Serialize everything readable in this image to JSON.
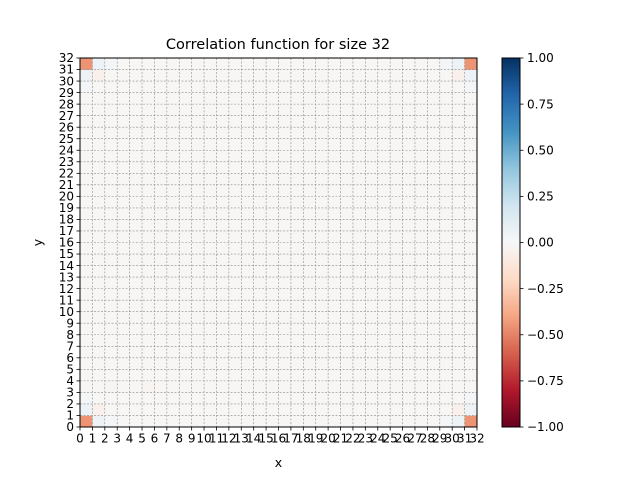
{
  "chart_data": {
    "type": "heatmap",
    "title": "Correlation function for size 32",
    "xlabel": "x",
    "ylabel": "y",
    "xlim": [
      0,
      32
    ],
    "ylim": [
      0,
      32
    ],
    "grid": true,
    "x_ticks": [
      "0",
      "1",
      "2",
      "3",
      "4",
      "5",
      "6",
      "7",
      "8",
      "9",
      "10",
      "11",
      "12",
      "13",
      "14",
      "15",
      "16",
      "17",
      "18",
      "19",
      "20",
      "21",
      "22",
      "23",
      "24",
      "25",
      "26",
      "27",
      "28",
      "29",
      "30",
      "31",
      "32"
    ],
    "y_ticks": [
      "0",
      "1",
      "2",
      "3",
      "4",
      "5",
      "6",
      "7",
      "8",
      "9",
      "10",
      "11",
      "12",
      "13",
      "14",
      "15",
      "16",
      "17",
      "18",
      "19",
      "20",
      "21",
      "22",
      "23",
      "24",
      "25",
      "26",
      "27",
      "28",
      "29",
      "30",
      "31",
      "32"
    ],
    "colormap": "RdBu",
    "colorbar": {
      "vmin": -1.0,
      "vmax": 1.0,
      "ticks": [
        "−1.00",
        "−0.75",
        "−0.50",
        "−0.25",
        "0.00",
        "0.25",
        "0.50",
        "0.75",
        "1.00"
      ]
    },
    "background_value": -0.01,
    "cells": [
      {
        "x": 0,
        "y": 0,
        "value": -0.45
      },
      {
        "x": 31,
        "y": 0,
        "value": -0.45
      },
      {
        "x": 0,
        "y": 31,
        "value": -0.45
      },
      {
        "x": 31,
        "y": 31,
        "value": -0.45
      },
      {
        "x": 1,
        "y": 0,
        "value": 0.06
      },
      {
        "x": 0,
        "y": 1,
        "value": 0.06
      },
      {
        "x": 30,
        "y": 0,
        "value": 0.06
      },
      {
        "x": 31,
        "y": 1,
        "value": 0.06
      },
      {
        "x": 1,
        "y": 31,
        "value": 0.06
      },
      {
        "x": 0,
        "y": 30,
        "value": 0.06
      },
      {
        "x": 30,
        "y": 31,
        "value": 0.06
      },
      {
        "x": 31,
        "y": 30,
        "value": 0.06
      },
      {
        "x": 1,
        "y": 1,
        "value": -0.05
      },
      {
        "x": 30,
        "y": 1,
        "value": -0.05
      },
      {
        "x": 1,
        "y": 30,
        "value": -0.05
      },
      {
        "x": 30,
        "y": 30,
        "value": -0.05
      },
      {
        "x": 2,
        "y": 0,
        "value": 0.02
      },
      {
        "x": 0,
        "y": 2,
        "value": 0.02
      },
      {
        "x": 29,
        "y": 0,
        "value": 0.02
      },
      {
        "x": 31,
        "y": 2,
        "value": 0.02
      },
      {
        "x": 2,
        "y": 31,
        "value": 0.02
      },
      {
        "x": 0,
        "y": 29,
        "value": 0.02
      },
      {
        "x": 29,
        "y": 31,
        "value": 0.02
      },
      {
        "x": 31,
        "y": 29,
        "value": 0.02
      },
      {
        "x": 5,
        "y": 3,
        "value": -0.02
      },
      {
        "x": 2,
        "y": 3,
        "value": -0.02
      }
    ]
  }
}
